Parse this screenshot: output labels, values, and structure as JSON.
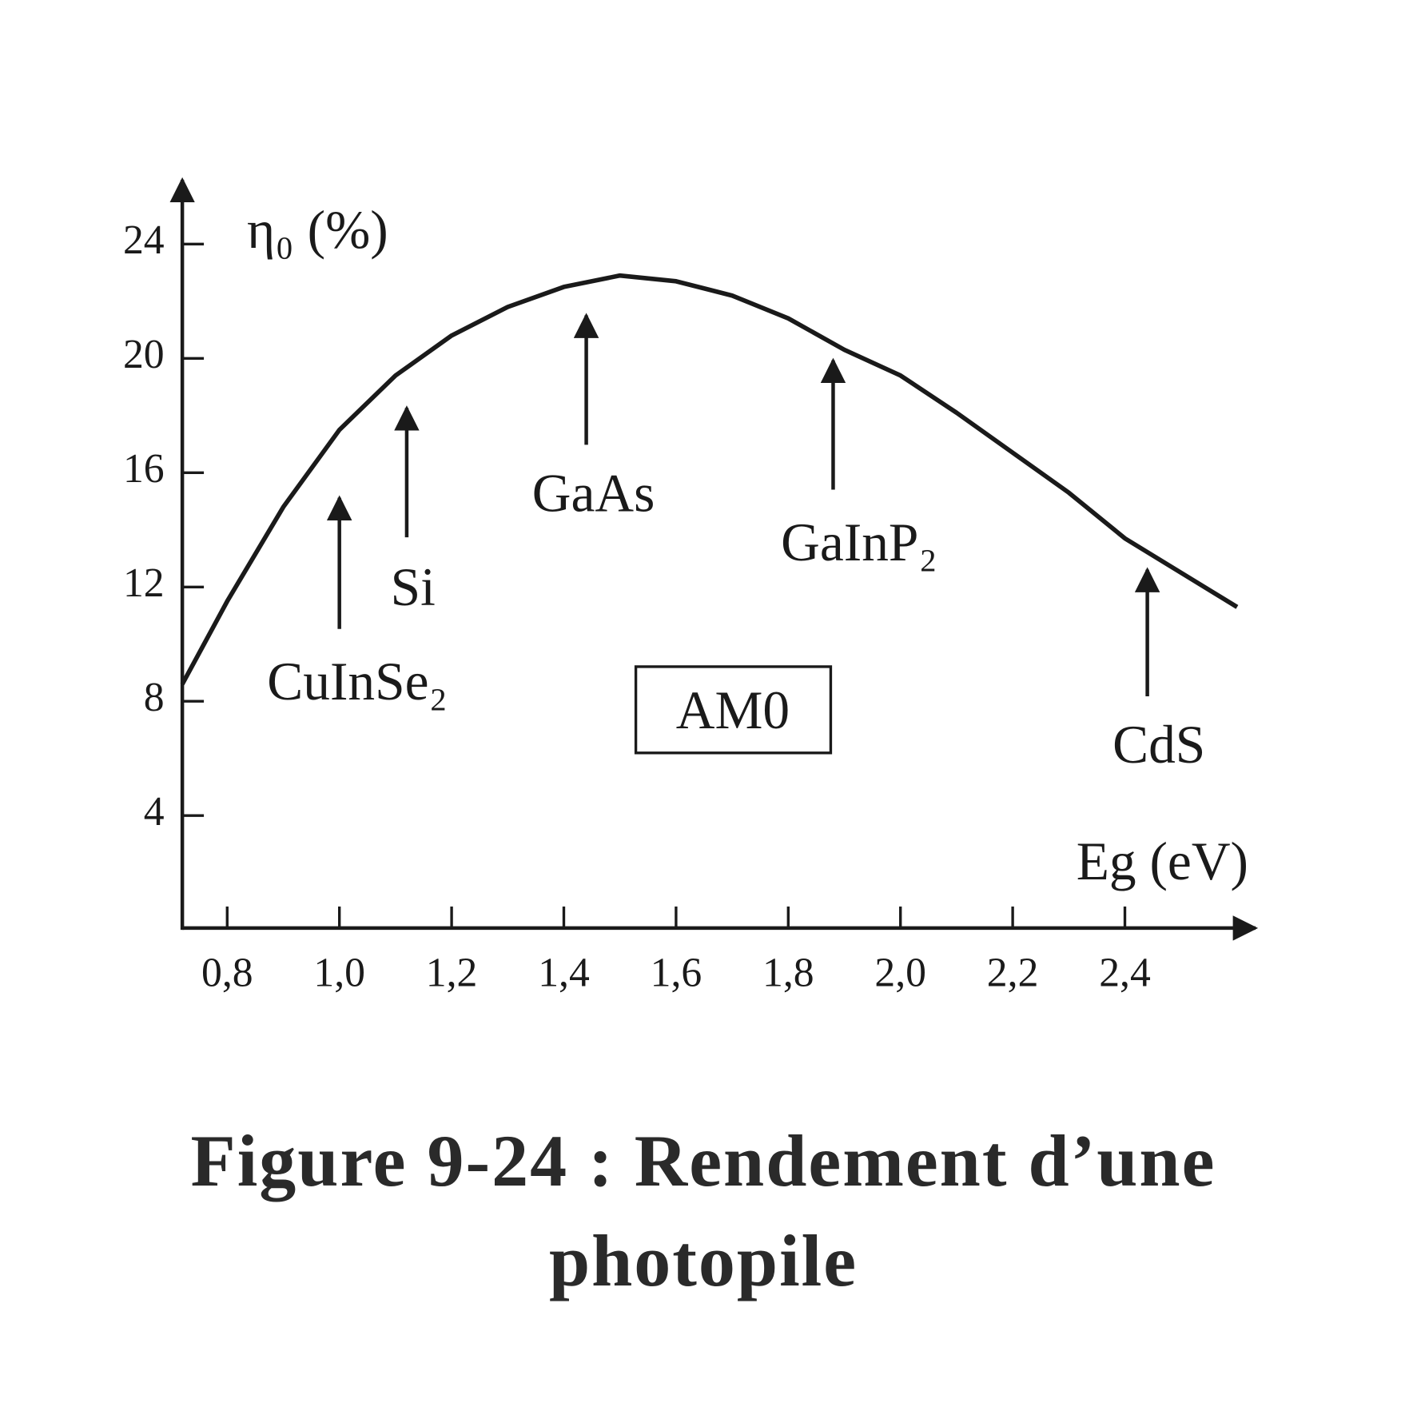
{
  "chart_data": {
    "type": "line",
    "caption": "Figure 9-24 : Rendement d’une photopile",
    "y_label": "η₀ (%)",
    "x_label": "Eg (eV)",
    "x": [
      0.72,
      0.8,
      0.9,
      1.0,
      1.1,
      1.2,
      1.3,
      1.4,
      1.5,
      1.6,
      1.7,
      1.8,
      1.9,
      2.0,
      2.1,
      2.2,
      2.3,
      2.4,
      2.5,
      2.6
    ],
    "series": [
      {
        "name": "AM0",
        "color": "#1a1a1a",
        "values": [
          8.6,
          11.5,
          14.8,
          17.5,
          19.4,
          20.8,
          21.8,
          22.5,
          22.9,
          22.7,
          22.2,
          21.4,
          20.3,
          19.4,
          18.1,
          16.7,
          15.3,
          13.7,
          12.5,
          11.3
        ]
      }
    ],
    "xlim": [
      0.72,
      2.62
    ],
    "ylim": [
      0,
      26
    ],
    "xticks": [
      {
        "value": 0.8,
        "label": "0,8"
      },
      {
        "value": 1.0,
        "label": "1,0"
      },
      {
        "value": 1.2,
        "label": "1,2"
      },
      {
        "value": 1.4,
        "label": "1,4"
      },
      {
        "value": 1.6,
        "label": "1,6"
      },
      {
        "value": 1.8,
        "label": "1,8"
      },
      {
        "value": 2.0,
        "label": "2,0"
      },
      {
        "value": 2.2,
        "label": "2,2"
      },
      {
        "value": 2.4,
        "label": "2,4"
      }
    ],
    "yticks": [
      4,
      8,
      12,
      16,
      20,
      24
    ],
    "annotations": [
      {
        "label": "CuInSe₂",
        "x": 1.0
      },
      {
        "label": "Si",
        "x": 1.12
      },
      {
        "label": "GaAs",
        "x": 1.44
      },
      {
        "label": "GaInP₂",
        "x": 1.88
      },
      {
        "label": "CdS",
        "x": 2.44
      }
    ]
  }
}
